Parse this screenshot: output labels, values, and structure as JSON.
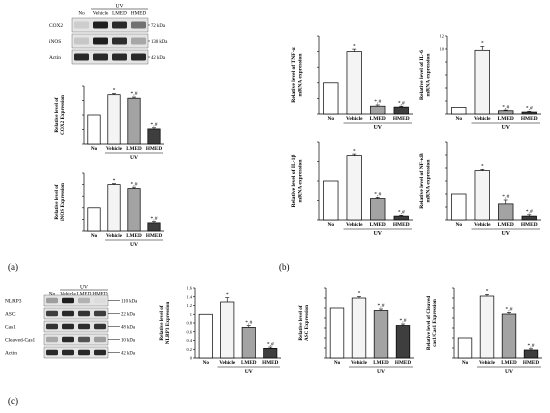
{
  "panel_labels": [
    "(a)",
    "(b)",
    "(c)"
  ],
  "colors": {
    "no": "#ffffff",
    "vehicle": "#f4f4f4",
    "lmed": "#a3a3a3",
    "hmed": "#3e3e3e"
  },
  "blot_a": {
    "group_label": "UV",
    "lanes": [
      "No",
      "Vehicle",
      "LMED",
      "HMED"
    ],
    "rows": [
      {
        "name": "COX2",
        "size": "72 kDa",
        "intensity": [
          0.12,
          0.95,
          0.9,
          0.55
        ]
      },
      {
        "name": "iNOS",
        "size": "130 kDa",
        "intensity": [
          0.15,
          0.95,
          0.88,
          0.3
        ]
      },
      {
        "name": "Actin",
        "size": "42 kDa",
        "intensity": [
          0.9,
          0.9,
          0.9,
          0.9
        ]
      }
    ]
  },
  "blot_c": {
    "group_label": "UV",
    "lanes": [
      "No",
      "Vehicle",
      "LMED",
      "HMED"
    ],
    "rows": [
      {
        "name": "NLRP3",
        "size": "110 kDa",
        "intensity": [
          0.35,
          0.95,
          0.25,
          0.05
        ]
      },
      {
        "name": "ASC",
        "size": "22 kDa",
        "intensity": [
          0.8,
          0.9,
          0.85,
          0.8
        ]
      },
      {
        "name": "Cas1",
        "size": "48 kDa",
        "intensity": [
          0.85,
          0.9,
          0.88,
          0.85
        ]
      },
      {
        "name": "Cleaved-Cas1",
        "size": "10 kDa",
        "intensity": [
          0.3,
          0.9,
          0.7,
          0.35
        ]
      },
      {
        "name": "Actin",
        "size": "42 kDa",
        "intensity": [
          0.9,
          0.9,
          0.9,
          0.9
        ]
      }
    ]
  },
  "chart_data": [
    {
      "id": "a1",
      "type": "bar",
      "ylabel": "Relative level of\nCOX2 Expression",
      "categories": [
        "No",
        "Vehicle",
        "LMED",
        "HMED"
      ],
      "values": [
        1.0,
        1.7,
        1.58,
        0.52
      ],
      "errors": [
        0,
        0.04,
        0.04,
        0.04
      ],
      "sig": [
        "",
        "*",
        "*,#",
        "*,#"
      ],
      "ylim": [
        0,
        2
      ],
      "ticks": [
        0,
        0.5,
        1,
        1.5,
        2
      ],
      "tick_labels": [
        "",
        "",
        "",
        "",
        ""
      ],
      "group_label": "UV"
    },
    {
      "id": "a2",
      "type": "bar",
      "ylabel": "Relative level of\niNOS Expression",
      "categories": [
        "No",
        "Vehicle",
        "LMED",
        "HMED"
      ],
      "values": [
        1.0,
        2.0,
        1.83,
        0.35
      ],
      "errors": [
        0,
        0.04,
        0.06,
        0.05
      ],
      "sig": [
        "",
        "*",
        "*,#",
        "*,#"
      ],
      "ylim": [
        0,
        2.5
      ],
      "ticks": [
        0,
        0.5,
        1,
        1.5,
        2,
        2.5
      ],
      "tick_labels": [
        "",
        "",
        "",
        "",
        "",
        ""
      ],
      "group_label": "UV"
    },
    {
      "id": "b1",
      "type": "bar",
      "ylabel": "Relative level of TNF-α\nmRNA expression",
      "categories": [
        "No",
        "Vehicle",
        "LMED",
        "HMED"
      ],
      "values": [
        1.0,
        2.0,
        0.25,
        0.22
      ],
      "errors": [
        0,
        0.08,
        0.04,
        0.03
      ],
      "sig": [
        "",
        "*",
        "*,#",
        "*,#"
      ],
      "ylim": [
        0,
        2.5
      ],
      "ticks": [
        0,
        0.5,
        1,
        1.5,
        2,
        2.5
      ],
      "tick_labels": [
        "",
        "",
        "",
        "",
        "",
        ""
      ],
      "group_label": "UV"
    },
    {
      "id": "b2",
      "type": "bar",
      "ylabel": "Relative level of IL-6\nmRNA expression",
      "categories": [
        "No",
        "Vehicle",
        "LMED",
        "HMED"
      ],
      "values": [
        1.0,
        9.8,
        0.5,
        0.3
      ],
      "errors": [
        0,
        0.6,
        0.1,
        0.1
      ],
      "sig": [
        "",
        "*",
        "*,#",
        "*,#"
      ],
      "ylim": [
        0,
        12
      ],
      "ticks": [
        0,
        2,
        4,
        6,
        8,
        10,
        12
      ],
      "tick_labels": [
        "",
        "",
        "",
        "",
        "",
        "10",
        "12"
      ],
      "group_label": "UV"
    },
    {
      "id": "b3",
      "type": "bar",
      "ylabel": "Relative level of IL-1β\nmRNA expression",
      "categories": [
        "No",
        "Vehicle",
        "LMED",
        "HMED"
      ],
      "values": [
        1.0,
        1.65,
        0.55,
        0.1
      ],
      "errors": [
        0,
        0.04,
        0.03,
        0.02
      ],
      "sig": [
        "",
        "*",
        "*,#",
        "*,#"
      ],
      "ylim": [
        0,
        2
      ],
      "ticks": [
        0,
        0.5,
        1,
        1.5,
        2
      ],
      "tick_labels": [
        "",
        "",
        "",
        "",
        ""
      ],
      "group_label": "UV"
    },
    {
      "id": "b4",
      "type": "bar",
      "ylabel": "Relative level of NF-κB\nmRNA expression",
      "categories": [
        "No",
        "Vehicle",
        "LMED",
        "HMED"
      ],
      "values": [
        1.0,
        1.9,
        0.62,
        0.15
      ],
      "errors": [
        0,
        0.05,
        0.15,
        0.05
      ],
      "sig": [
        "",
        "*",
        "*,#",
        "*,#"
      ],
      "ylim": [
        0,
        3
      ],
      "ticks": [
        0,
        0.5,
        1,
        1.5,
        2,
        2.5,
        3
      ],
      "tick_labels": [
        "",
        "",
        "",
        "",
        "",
        "",
        ""
      ],
      "group_label": "UV"
    },
    {
      "id": "c1",
      "type": "bar",
      "ylabel": "Relative level of\nNLRP3 Expression",
      "categories": [
        "No",
        "Vehicle",
        "LMED",
        "HMED"
      ],
      "values": [
        1.0,
        1.28,
        0.7,
        0.22
      ],
      "errors": [
        0,
        0.1,
        0.04,
        0.03
      ],
      "sig": [
        "",
        "*",
        "*,#",
        "*,#"
      ],
      "ylim": [
        0,
        1.6
      ],
      "ticks": [
        0,
        0.2,
        0.4,
        0.6,
        0.8,
        1,
        1.2,
        1.4,
        1.6
      ],
      "tick_labels": [
        "0",
        "0.2",
        "0.4",
        "0.6",
        "0.8",
        "1",
        "1.2",
        "1.4",
        "1.6"
      ],
      "group_label": "UV"
    },
    {
      "id": "c2",
      "type": "bar",
      "ylabel": "Relative level of\nASC Expression",
      "categories": [
        "No",
        "Vehicle",
        "LMED",
        "HMED"
      ],
      "values": [
        1.0,
        1.2,
        0.95,
        0.65
      ],
      "errors": [
        0,
        0.03,
        0.03,
        0.03
      ],
      "sig": [
        "",
        "*",
        "*,#",
        "*,#"
      ],
      "ylim": [
        0,
        1.4
      ],
      "ticks": [
        0,
        0.2,
        0.4,
        0.6,
        0.8,
        1,
        1.2,
        1.4
      ],
      "tick_labels": [
        "",
        "",
        "",
        "",
        "",
        "",
        "",
        ""
      ],
      "group_label": "UV"
    },
    {
      "id": "c3",
      "type": "bar",
      "ylabel": "Relative level of Cleaved\ncas1/Cas1 Expression",
      "categories": [
        "No",
        "Vehicle",
        "LMED",
        "HMED"
      ],
      "values": [
        1.0,
        3.1,
        2.2,
        0.4
      ],
      "errors": [
        0,
        0.08,
        0.08,
        0.06
      ],
      "sig": [
        "",
        "*",
        "*,#",
        "*,#"
      ],
      "ylim": [
        0,
        3.5
      ],
      "ticks": [
        0,
        0.5,
        1,
        1.5,
        2,
        2.5,
        3,
        3.5
      ],
      "tick_labels": [
        "",
        "",
        "",
        "",
        "",
        "",
        "",
        ""
      ],
      "group_label": "UV"
    }
  ]
}
